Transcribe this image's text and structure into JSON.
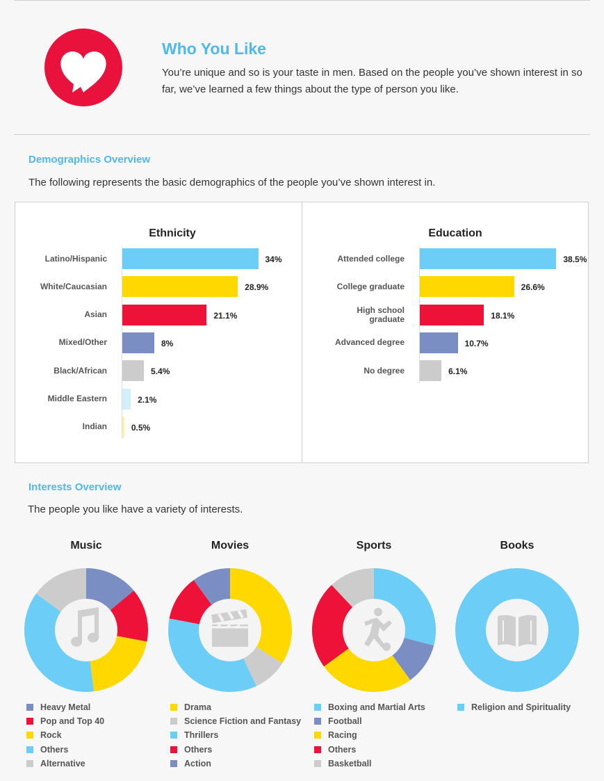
{
  "header": {
    "title": "Who You Like",
    "description": "You’re unique and so is your taste in men. Based on the people you’ve shown interest in so far, we’ve learned a few things about the type of person you like.",
    "logo_icon": "heart-icon"
  },
  "demographics": {
    "heading": "Demographics Overview",
    "description": "The following represents the basic demographics of the people you’ve shown interest in."
  },
  "interests": {
    "heading": "Interests Overview",
    "description": "The people you like have a variety of interests."
  },
  "colors": {
    "blue": "#6ccdf7",
    "yellow": "#ffd800",
    "red": "#ee1238",
    "slate": "#7b8ec4",
    "gray": "#cccccc",
    "lightblue": "#d3effb",
    "lightyellow": "#fff1a6",
    "accent": "#4fb8ec"
  },
  "chart_data": [
    {
      "type": "bar",
      "title": "Ethnicity",
      "orientation": "horizontal",
      "categories": [
        "Latino/Hispanic",
        "White/Caucasian",
        "Asian",
        "Mixed/Other",
        "Black/African",
        "Middle Eastern",
        "Indian"
      ],
      "values": [
        34,
        28.9,
        21.1,
        8,
        5.4,
        2.1,
        0.5
      ],
      "value_labels": [
        "34%",
        "28.9%",
        "21.1%",
        "8%",
        "5.4%",
        "2.1%",
        "0.5%"
      ],
      "colors": [
        "#6ccdf7",
        "#ffd800",
        "#ee1238",
        "#7b8ec4",
        "#cccccc",
        "#d3effb",
        "#fff1a6"
      ],
      "xlim": [
        0,
        40
      ]
    },
    {
      "type": "bar",
      "title": "Education",
      "orientation": "horizontal",
      "categories": [
        "Attended college",
        "College graduate",
        "High school graduate",
        "Advanced degree",
        "No degree"
      ],
      "values": [
        38.5,
        26.6,
        18.1,
        10.7,
        6.1
      ],
      "value_labels": [
        "38.5%",
        "26.6%",
        "18.1%",
        "10.7%",
        "6.1%"
      ],
      "colors": [
        "#6ccdf7",
        "#ffd800",
        "#ee1238",
        "#7b8ec4",
        "#cccccc"
      ],
      "xlim": [
        0,
        40
      ]
    },
    {
      "type": "pie",
      "title": "Music",
      "icon": "music-note-icon",
      "legend": [
        "Heavy Metal",
        "Pop and Top 40",
        "Rock",
        "Others",
        "Alternative"
      ],
      "legend_colors": [
        "#7b8ec4",
        "#ee1238",
        "#ffd800",
        "#6ccdf7",
        "#cccccc"
      ],
      "slices": [
        {
          "label": "Heavy Metal",
          "value": 14,
          "color": "#7b8ec4"
        },
        {
          "label": "Pop and Top 40",
          "value": 14,
          "color": "#ee1238"
        },
        {
          "label": "Rock",
          "value": 20,
          "color": "#ffd800"
        },
        {
          "label": "Others",
          "value": 37,
          "color": "#6ccdf7"
        },
        {
          "label": "Alternative",
          "value": 15,
          "color": "#cccccc"
        }
      ]
    },
    {
      "type": "pie",
      "title": "Movies",
      "icon": "clapperboard-icon",
      "legend": [
        "Drama",
        "Science Fiction and Fantasy",
        "Thrillers",
        "Others",
        "Action"
      ],
      "legend_colors": [
        "#ffd800",
        "#cccccc",
        "#6ccdf7",
        "#ee1238",
        "#7b8ec4"
      ],
      "slices": [
        {
          "label": "Drama",
          "value": 34,
          "color": "#ffd800"
        },
        {
          "label": "Science Fiction and Fantasy",
          "value": 9,
          "color": "#cccccc"
        },
        {
          "label": "Thrillers",
          "value": 35,
          "color": "#6ccdf7"
        },
        {
          "label": "Others",
          "value": 12,
          "color": "#ee1238"
        },
        {
          "label": "Action",
          "value": 10,
          "color": "#7b8ec4"
        }
      ]
    },
    {
      "type": "pie",
      "title": "Sports",
      "icon": "soccer-player-icon",
      "legend": [
        "Boxing and Martial Arts",
        "Football",
        "Racing",
        "Others",
        "Basketball"
      ],
      "legend_colors": [
        "#6ccdf7",
        "#7b8ec4",
        "#ffd800",
        "#ee1238",
        "#cccccc"
      ],
      "slices": [
        {
          "label": "Boxing and Martial Arts",
          "value": 29,
          "color": "#6ccdf7"
        },
        {
          "label": "Football",
          "value": 11,
          "color": "#7b8ec4"
        },
        {
          "label": "Racing",
          "value": 25,
          "color": "#ffd800"
        },
        {
          "label": "Others",
          "value": 23,
          "color": "#ee1238"
        },
        {
          "label": "Basketball",
          "value": 12,
          "color": "#cccccc"
        }
      ]
    },
    {
      "type": "pie",
      "title": "Books",
      "icon": "book-icon",
      "legend": [
        "Religion and Spirituality"
      ],
      "legend_colors": [
        "#6ccdf7"
      ],
      "slices": [
        {
          "label": "Religion and Spirituality",
          "value": 100,
          "color": "#6ccdf7"
        }
      ]
    }
  ]
}
